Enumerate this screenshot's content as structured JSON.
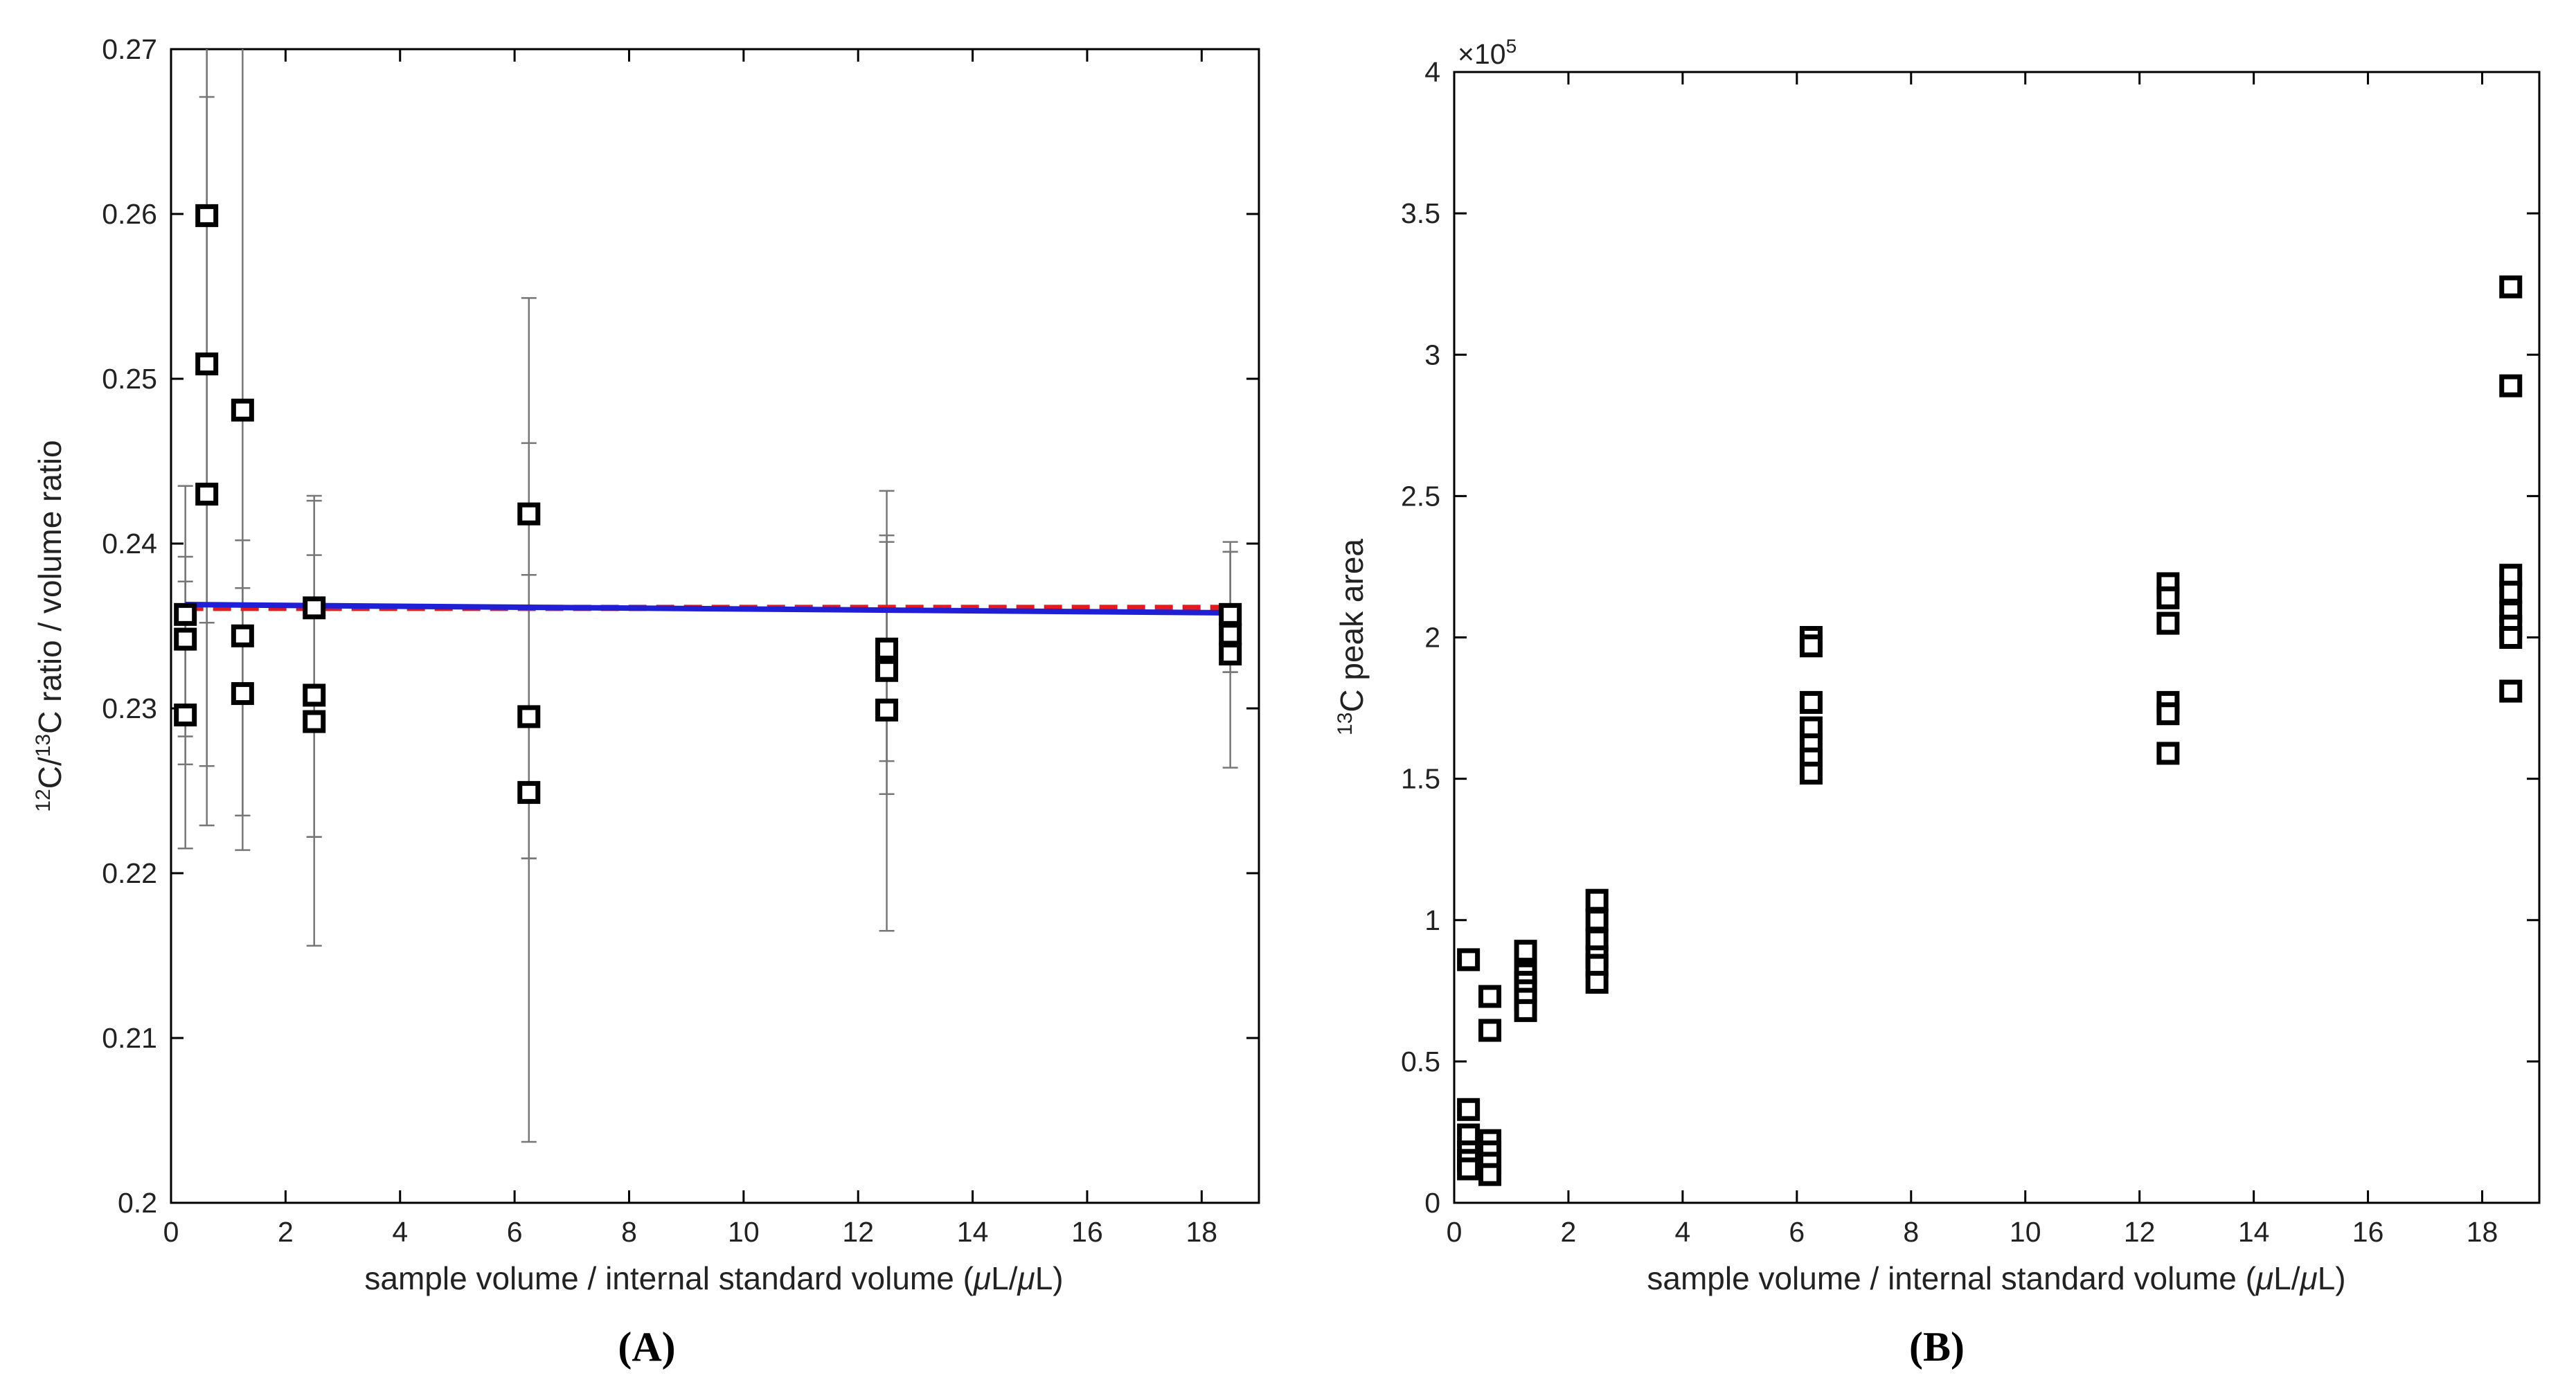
{
  "chart_data": [
    {
      "panel": "(A)",
      "type": "scatter",
      "xlabel_html": [
        "sample volume / internal standard volume (",
        "μ",
        "L/",
        "μ",
        "L)"
      ],
      "ylabel": {
        "sup1": "12",
        "t1": "C/",
        "sup2": "13",
        "t2": "C ratio / volume ratio"
      },
      "xlim": [
        0,
        19
      ],
      "ylim": [
        0.2,
        0.27
      ],
      "xticks": [
        0,
        2,
        4,
        6,
        8,
        10,
        12,
        14,
        16,
        18
      ],
      "yticks": [
        0.2,
        0.21,
        0.22,
        0.23,
        0.24,
        0.25,
        0.26,
        0.27
      ],
      "ytick_labels": [
        "0.2",
        "0.21",
        "0.22",
        "0.23",
        "0.24",
        "0.25",
        "0.26",
        "0.27"
      ],
      "points": [
        {
          "x": 0.25,
          "y": 0.2357,
          "lo": 0.2283,
          "hi": 0.2435
        },
        {
          "x": 0.25,
          "y": 0.2342,
          "lo": 0.2266,
          "hi": 0.2392
        },
        {
          "x": 0.25,
          "y": 0.2296,
          "lo": 0.2215,
          "hi": 0.2377
        },
        {
          "x": 0.625,
          "y": 0.2599,
          "lo": 0.2352,
          "hi": 0.2705
        },
        {
          "x": 0.625,
          "y": 0.2509,
          "lo": 0.2265,
          "hi": 0.2671
        },
        {
          "x": 0.625,
          "y": 0.243,
          "lo": 0.2229,
          "hi": 0.2705
        },
        {
          "x": 1.25,
          "y": 0.2481,
          "lo": 0.2235,
          "hi": 0.2705
        },
        {
          "x": 1.25,
          "y": 0.2344,
          "lo": 0.2214,
          "hi": 0.2402
        },
        {
          "x": 1.25,
          "y": 0.2309,
          "lo": 0.2235,
          "hi": 0.2373
        },
        {
          "x": 2.5,
          "y": 0.2361,
          "lo": 0.2222,
          "hi": 0.2429
        },
        {
          "x": 2.5,
          "y": 0.2308,
          "lo": 0.2222,
          "hi": 0.2393
        },
        {
          "x": 2.5,
          "y": 0.2292,
          "lo": 0.2156,
          "hi": 0.2426
        },
        {
          "x": 6.25,
          "y": 0.2418,
          "lo": 0.2209,
          "hi": 0.2549
        },
        {
          "x": 6.25,
          "y": 0.2295,
          "lo": 0.2037,
          "hi": 0.2461
        },
        {
          "x": 6.25,
          "y": 0.2249,
          "lo": 0.2209,
          "hi": 0.2381
        },
        {
          "x": 12.5,
          "y": 0.2336,
          "lo": 0.2248,
          "hi": 0.2432
        },
        {
          "x": 12.5,
          "y": 0.2323,
          "lo": 0.2268,
          "hi": 0.2405
        },
        {
          "x": 12.5,
          "y": 0.2299,
          "lo": 0.2165,
          "hi": 0.2401
        },
        {
          "x": 18.5,
          "y": 0.2357,
          "lo": 0.2264,
          "hi": 0.2401
        },
        {
          "x": 18.5,
          "y": 0.2345,
          "lo": 0.2322,
          "hi": 0.2395
        },
        {
          "x": 18.5,
          "y": 0.2333,
          "lo": 0.2322,
          "hi": 0.2395
        }
      ],
      "fit_lines": [
        {
          "name": "mean",
          "style": "dashed",
          "color": "#e41a1c",
          "x": [
            0.25,
            18.5
          ],
          "y": [
            0.2361,
            0.2361
          ]
        },
        {
          "name": "linear fit",
          "style": "solid",
          "color": "#1f1fd6",
          "x": [
            0.25,
            18.5
          ],
          "y": [
            0.2363,
            0.2358
          ]
        }
      ]
    },
    {
      "panel": "(B)",
      "type": "scatter",
      "xlabel_html": [
        "sample volume / internal standard volume (",
        "μ",
        "L/",
        "μ",
        "L)"
      ],
      "ylabel": {
        "sup1": "13",
        "t1": "C peak area"
      },
      "exponent": {
        "prefix": "×10",
        "power": "5"
      },
      "xlim": [
        0,
        19
      ],
      "ylim": [
        0,
        4
      ],
      "xticks": [
        0,
        2,
        4,
        6,
        8,
        10,
        12,
        14,
        16,
        18
      ],
      "yticks": [
        0,
        0.5,
        1,
        1.5,
        2,
        2.5,
        3,
        3.5,
        4
      ],
      "ytick_labels": [
        "0",
        "0.5",
        "1",
        "1.5",
        "2",
        "2.5",
        "3",
        "3.5",
        "4"
      ],
      "points": [
        {
          "x": 0.25,
          "y": 0.86
        },
        {
          "x": 0.25,
          "y": 0.33
        },
        {
          "x": 0.25,
          "y": 0.24
        },
        {
          "x": 0.25,
          "y": 0.18
        },
        {
          "x": 0.25,
          "y": 0.15
        },
        {
          "x": 0.25,
          "y": 0.12
        },
        {
          "x": 0.625,
          "y": 0.73
        },
        {
          "x": 0.625,
          "y": 0.61
        },
        {
          "x": 0.625,
          "y": 0.22
        },
        {
          "x": 0.625,
          "y": 0.18
        },
        {
          "x": 0.625,
          "y": 0.14
        },
        {
          "x": 0.625,
          "y": 0.1
        },
        {
          "x": 1.25,
          "y": 0.89
        },
        {
          "x": 1.25,
          "y": 0.81
        },
        {
          "x": 1.25,
          "y": 0.78
        },
        {
          "x": 1.25,
          "y": 0.75
        },
        {
          "x": 1.25,
          "y": 0.72
        },
        {
          "x": 1.25,
          "y": 0.68
        },
        {
          "x": 2.5,
          "y": 1.07
        },
        {
          "x": 2.5,
          "y": 1.0
        },
        {
          "x": 2.5,
          "y": 0.93
        },
        {
          "x": 2.5,
          "y": 0.87
        },
        {
          "x": 2.5,
          "y": 0.84
        },
        {
          "x": 2.5,
          "y": 0.78
        },
        {
          "x": 6.25,
          "y": 2.0
        },
        {
          "x": 6.25,
          "y": 1.97
        },
        {
          "x": 6.25,
          "y": 1.77
        },
        {
          "x": 6.25,
          "y": 1.68
        },
        {
          "x": 6.25,
          "y": 1.62
        },
        {
          "x": 6.25,
          "y": 1.57
        },
        {
          "x": 6.25,
          "y": 1.52
        },
        {
          "x": 12.5,
          "y": 2.19
        },
        {
          "x": 12.5,
          "y": 2.14
        },
        {
          "x": 12.5,
          "y": 2.05
        },
        {
          "x": 12.5,
          "y": 1.77
        },
        {
          "x": 12.5,
          "y": 1.73
        },
        {
          "x": 12.5,
          "y": 1.59
        },
        {
          "x": 18.5,
          "y": 3.24
        },
        {
          "x": 18.5,
          "y": 2.89
        },
        {
          "x": 18.5,
          "y": 2.22
        },
        {
          "x": 18.5,
          "y": 2.16
        },
        {
          "x": 18.5,
          "y": 2.09
        },
        {
          "x": 18.5,
          "y": 2.04
        },
        {
          "x": 18.5,
          "y": 2.0
        },
        {
          "x": 18.5,
          "y": 1.81
        }
      ]
    }
  ]
}
